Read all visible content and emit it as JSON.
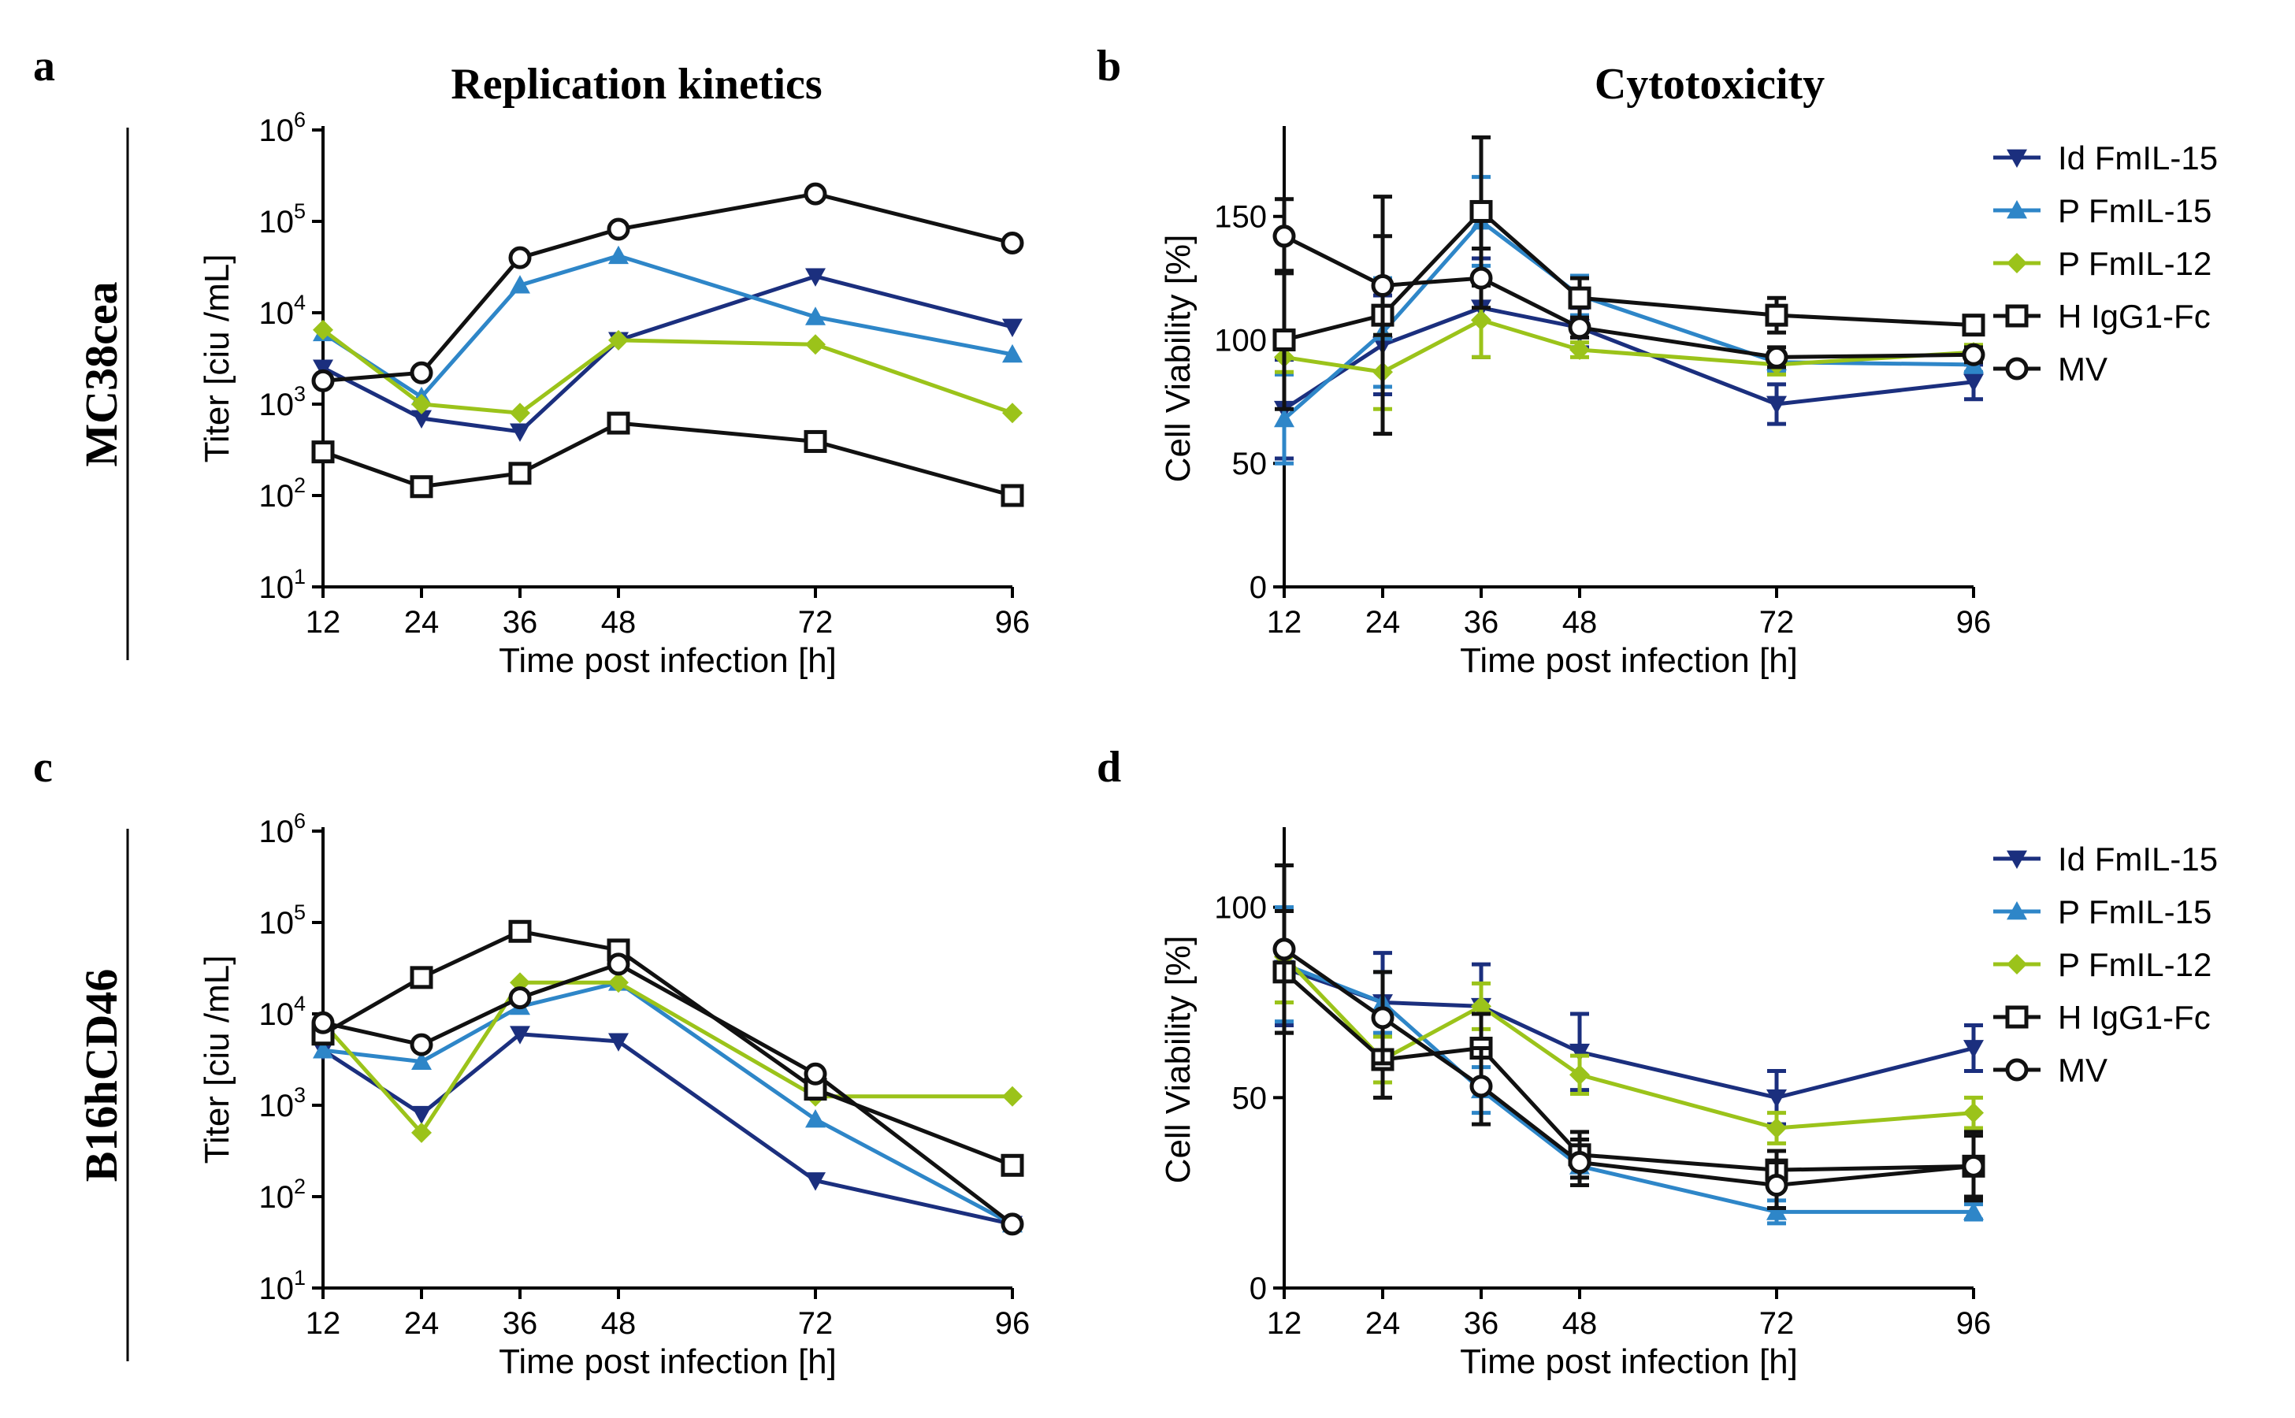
{
  "figure": {
    "row_labels": [
      "MC38cea",
      "B16hCD46"
    ],
    "panel_titles": {
      "replication": "Replication kinetics",
      "cytotoxicity": "Cytotoxicity"
    }
  },
  "styles": {
    "Id FmIL-15": {
      "color": "#1b2f7e",
      "marker": "triangle-down"
    },
    "P FmIL-15": {
      "color": "#2e86c8",
      "marker": "triangle-up"
    },
    "P FmIL-12": {
      "color": "#9bc31a",
      "marker": "diamond"
    },
    "H IgG1-Fc": {
      "color": "#111111",
      "marker": "square-open"
    },
    "MV": {
      "color": "#111111",
      "marker": "circle-open"
    }
  },
  "chart_data": [
    {
      "panel": "a",
      "type": "line",
      "title": "Replication kinetics",
      "xlabel": "Time post infection [h]",
      "ylabel": "Titer [ciu /mL]",
      "yscale": "log",
      "ylim": [
        10,
        1000000
      ],
      "x": [
        12,
        24,
        36,
        48,
        72,
        96
      ],
      "xticks": [
        "12",
        "24",
        "36",
        "48",
        "72",
        "96"
      ],
      "yticks": [
        {
          "base": "10",
          "exp": "1"
        },
        {
          "base": "10",
          "exp": "2"
        },
        {
          "base": "10",
          "exp": "3"
        },
        {
          "base": "10",
          "exp": "4"
        },
        {
          "base": "10",
          "exp": "5"
        },
        {
          "base": "10",
          "exp": "6"
        }
      ],
      "legend": false,
      "series": [
        {
          "name": "Id FmIL-15",
          "values": [
            2500,
            700,
            500,
            5000,
            25000,
            7000
          ]
        },
        {
          "name": "P FmIL-15",
          "values": [
            6000,
            1200,
            20000,
            42000,
            9000,
            3500
          ]
        },
        {
          "name": "P FmIL-12",
          "values": [
            6500,
            1000,
            800,
            5000,
            4500,
            800
          ]
        },
        {
          "name": "H IgG1-Fc",
          "values": [
            300,
            125,
            175,
            620,
            390,
            100
          ]
        },
        {
          "name": "MV",
          "values": [
            1800,
            2200,
            40000,
            82000,
            200000,
            58000
          ]
        }
      ]
    },
    {
      "panel": "b",
      "type": "line",
      "title": "Cytotoxicity",
      "xlabel": "Time post infection [h]",
      "ylabel": "Cell Viability [%]",
      "yscale": "linear",
      "ylim": [
        0,
        185
      ],
      "x": [
        12,
        24,
        36,
        48,
        72,
        96
      ],
      "xticks": [
        "12",
        "24",
        "36",
        "48",
        "72",
        "96"
      ],
      "yticks": [
        {
          "base": "0",
          "value": 0
        },
        {
          "base": "50",
          "value": 50
        },
        {
          "base": "100",
          "value": 100
        },
        {
          "base": "150",
          "value": 150
        }
      ],
      "legend": true,
      "series": [
        {
          "name": "Id FmIL-15",
          "values": [
            72,
            98,
            113,
            105,
            74,
            83
          ],
          "errors": [
            20,
            20,
            20,
            8,
            8,
            7
          ]
        },
        {
          "name": "P FmIL-15",
          "values": [
            68,
            103,
            148,
            118,
            91,
            90
          ],
          "errors": [
            18,
            22,
            18,
            8,
            4,
            3
          ]
        },
        {
          "name": "P FmIL-12",
          "values": [
            93,
            87,
            108,
            96,
            90,
            95
          ],
          "errors": [
            6,
            15,
            15,
            3,
            4,
            3
          ]
        },
        {
          "name": "H IgG1-Fc",
          "values": [
            100,
            110,
            152,
            117,
            110,
            106
          ],
          "errors": [
            28,
            48,
            30,
            8,
            7,
            3
          ]
        },
        {
          "name": "MV",
          "values": [
            142,
            122,
            125,
            105,
            93,
            94
          ],
          "errors": [
            15,
            20,
            12,
            4,
            4,
            3
          ]
        }
      ]
    },
    {
      "panel": "c",
      "type": "line",
      "title": "",
      "xlabel": "Time post infection [h]",
      "ylabel": "Titer [ciu /mL]",
      "yscale": "log",
      "ylim": [
        10,
        1000000
      ],
      "x": [
        12,
        24,
        36,
        48,
        72,
        96
      ],
      "xticks": [
        "12",
        "24",
        "36",
        "48",
        "72",
        "96"
      ],
      "yticks": [
        {
          "base": "10",
          "exp": "1"
        },
        {
          "base": "10",
          "exp": "2"
        },
        {
          "base": "10",
          "exp": "3"
        },
        {
          "base": "10",
          "exp": "4"
        },
        {
          "base": "10",
          "exp": "5"
        },
        {
          "base": "10",
          "exp": "6"
        }
      ],
      "legend": false,
      "series": [
        {
          "name": "Id FmIL-15",
          "values": [
            4000,
            800,
            6000,
            5000,
            150,
            50
          ]
        },
        {
          "name": "P FmIL-15",
          "values": [
            4000,
            3000,
            12000,
            22000,
            700,
            50
          ]
        },
        {
          "name": "P FmIL-12",
          "values": [
            8000,
            500,
            22000,
            22000,
            1250,
            1250
          ]
        },
        {
          "name": "H IgG1-Fc",
          "values": [
            6000,
            25000,
            80000,
            50000,
            1500,
            220
          ]
        },
        {
          "name": "MV",
          "values": [
            8000,
            4600,
            15000,
            35000,
            2200,
            50
          ]
        }
      ]
    },
    {
      "panel": "d",
      "type": "line",
      "title": "",
      "xlabel": "Time post infection [h]",
      "ylabel": "Cell Viability [%]",
      "yscale": "linear",
      "ylim": [
        0,
        120
      ],
      "x": [
        12,
        24,
        36,
        48,
        72,
        96
      ],
      "xticks": [
        "12",
        "24",
        "36",
        "48",
        "72",
        "96"
      ],
      "yticks": [
        {
          "base": "0",
          "value": 0
        },
        {
          "base": "50",
          "value": 50
        },
        {
          "base": "100",
          "value": 100
        }
      ],
      "legend": true,
      "series": [
        {
          "name": "Id FmIL-15",
          "values": [
            84,
            75,
            74,
            62,
            50,
            63
          ],
          "errors": [
            15,
            13,
            11,
            10,
            7,
            6
          ]
        },
        {
          "name": "P FmIL-15",
          "values": [
            85,
            75,
            52,
            32,
            20,
            20
          ],
          "errors": [
            15,
            8,
            6,
            3,
            3,
            2
          ]
        },
        {
          "name": "P FmIL-12",
          "values": [
            87,
            60,
            74,
            56,
            42,
            46
          ],
          "errors": [
            12,
            6,
            6,
            5,
            4,
            4
          ]
        },
        {
          "name": "H IgG1-Fc",
          "values": [
            83,
            60,
            63,
            35,
            31,
            32
          ],
          "errors": [
            16,
            10,
            9,
            6,
            5,
            9
          ]
        },
        {
          "name": "MV",
          "values": [
            89,
            71,
            53,
            33,
            27,
            32
          ],
          "errors": [
            22,
            12,
            10,
            6,
            6,
            8
          ]
        }
      ]
    }
  ]
}
